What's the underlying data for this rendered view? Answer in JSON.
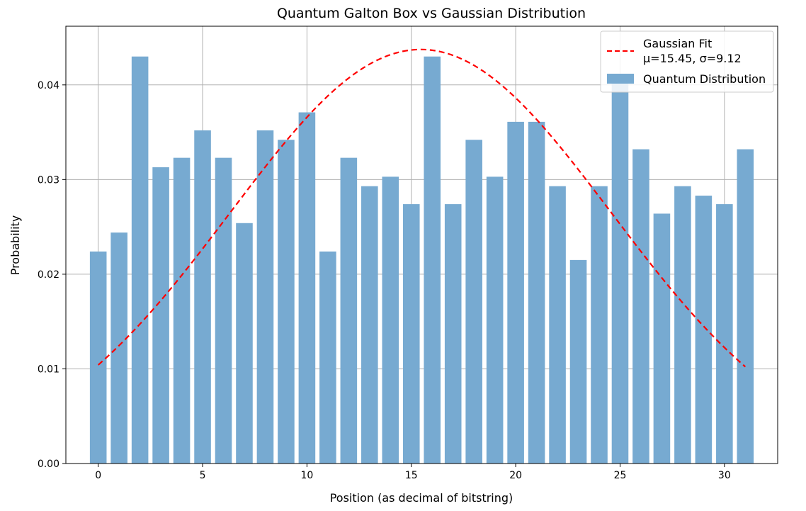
{
  "chart_data": {
    "type": "bar",
    "title": "Quantum Galton Box vs Gaussian Distribution",
    "xlabel": "Position (as decimal of bitstring)",
    "ylabel": "Probability",
    "xlim": [
      -1.55,
      32.55
    ],
    "ylim": [
      0,
      0.0462
    ],
    "x_ticks": [
      0,
      5,
      10,
      15,
      20,
      25,
      30
    ],
    "y_ticks": [
      0.0,
      0.01,
      0.02,
      0.03,
      0.04
    ],
    "y_tick_labels": [
      "0.00",
      "0.01",
      "0.02",
      "0.03",
      "0.04"
    ],
    "grid": true,
    "legend_position": "top-right",
    "x": [
      0,
      1,
      2,
      3,
      4,
      5,
      6,
      7,
      8,
      9,
      10,
      11,
      12,
      13,
      14,
      15,
      16,
      17,
      18,
      19,
      20,
      21,
      22,
      23,
      24,
      25,
      26,
      27,
      28,
      29,
      30,
      31
    ],
    "series": [
      {
        "name": "Quantum Distribution",
        "kind": "bar",
        "color": "#77aad1",
        "values": [
          0.0224,
          0.0244,
          0.043,
          0.0313,
          0.0323,
          0.0352,
          0.0323,
          0.0254,
          0.0352,
          0.0342,
          0.0371,
          0.0224,
          0.0323,
          0.0293,
          0.0303,
          0.0274,
          0.043,
          0.0274,
          0.0342,
          0.0303,
          0.0361,
          0.0361,
          0.0293,
          0.0215,
          0.0293,
          0.041,
          0.0332,
          0.0264,
          0.0293,
          0.0283,
          0.0274,
          0.0332
        ]
      },
      {
        "name": "Gaussian Fit\nμ=15.45, σ=9.12",
        "kind": "line",
        "style": "dashed",
        "color": "#ff0000",
        "mu": 15.45,
        "sigma": 9.12,
        "x_range": [
          0,
          31
        ]
      }
    ],
    "legend": {
      "line_label_1": "Gaussian Fit",
      "line_label_2": "μ=15.45, σ=9.12",
      "bar_label": "Quantum Distribution"
    }
  }
}
